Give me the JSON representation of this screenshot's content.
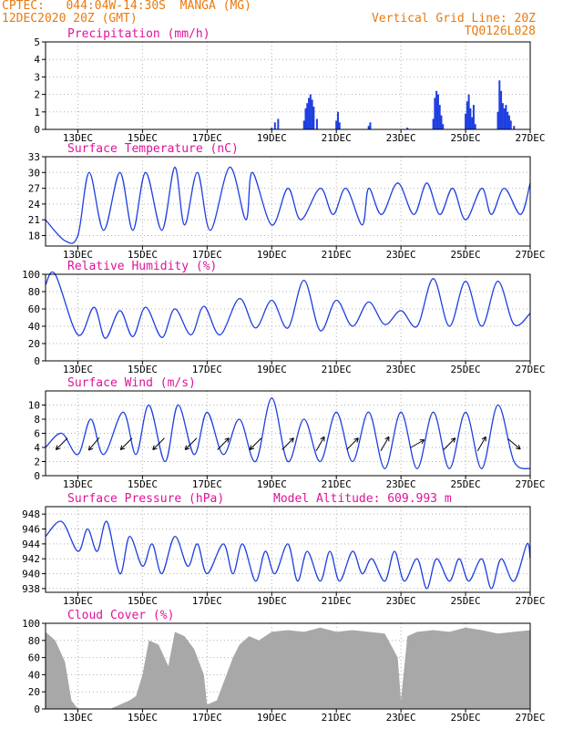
{
  "header": {
    "line1_left": "CPTEC:   044:04W-14:30S  MANGA (MG)",
    "line2_left": "12DEC2020 20Z (GMT)",
    "line1_right": "Vertical Grid Line: 20Z",
    "line2_right": "TQ0126L028"
  },
  "colors": {
    "title": "#e0139a",
    "header": "#e87a0f",
    "line": "#1f3fe0",
    "bars": "#1f3fe0",
    "cloud": "#a8a8a8",
    "grid": "#b0b0b0"
  },
  "x_ticks": [
    "13DEC",
    "15DEC",
    "17DEC",
    "19DEC",
    "21DEC",
    "23DEC",
    "25DEC",
    "27DEC"
  ],
  "model_altitude": "Model Altitude: 609.993 m",
  "chart_data": [
    {
      "type": "bar",
      "title": "Precipitation (mm/h)",
      "ylim": [
        0,
        5
      ],
      "yticks": [
        0,
        1,
        2,
        3,
        4,
        5
      ],
      "x": [
        19.0,
        19.1,
        19.2,
        20.0,
        20.05,
        20.1,
        20.15,
        20.2,
        20.25,
        20.3,
        20.4,
        21.0,
        21.05,
        21.1,
        22.0,
        22.05,
        23.2,
        24.0,
        24.05,
        24.1,
        24.15,
        24.2,
        24.25,
        24.3,
        25.0,
        25.05,
        25.1,
        25.15,
        25.2,
        25.25,
        25.3,
        26.0,
        26.05,
        26.1,
        26.15,
        26.2,
        26.25,
        26.3,
        26.35,
        26.4,
        26.5
      ],
      "values": [
        0.1,
        0.4,
        0.6,
        0.5,
        1.2,
        1.5,
        1.8,
        2.0,
        1.7,
        1.3,
        0.6,
        0.5,
        1.0,
        0.4,
        0.2,
        0.4,
        0.1,
        0.6,
        1.8,
        2.2,
        2.0,
        1.4,
        0.8,
        0.3,
        0.9,
        1.6,
        2.0,
        1.2,
        0.7,
        1.4,
        0.3,
        1.0,
        2.8,
        2.2,
        1.5,
        1.2,
        1.4,
        1.0,
        0.8,
        0.5,
        0.2
      ]
    },
    {
      "type": "line",
      "title": "Surface Temperature (nC)",
      "ylim": [
        16,
        33
      ],
      "yticks": [
        18,
        21,
        24,
        27,
        30,
        33
      ],
      "x": [
        12.0,
        12.6,
        13.0,
        13.35,
        13.8,
        14.3,
        14.7,
        15.1,
        15.6,
        16.0,
        16.3,
        16.7,
        17.1,
        17.7,
        18.2,
        18.4,
        19.0,
        19.5,
        19.9,
        20.5,
        20.9,
        21.3,
        21.8,
        22.0,
        22.4,
        22.9,
        23.4,
        23.8,
        24.2,
        24.6,
        25.0,
        25.5,
        25.8,
        26.2,
        26.7,
        27.0
      ],
      "values": [
        21,
        17,
        18,
        30,
        19,
        30,
        19,
        30,
        19,
        31,
        20,
        30,
        19,
        31,
        21,
        30,
        20,
        27,
        21,
        27,
        22,
        27,
        20,
        27,
        22,
        28,
        22,
        28,
        22,
        27,
        21,
        27,
        22,
        27,
        22,
        28
      ]
    },
    {
      "type": "line",
      "title": "Relative Humidity (%)",
      "ylim": [
        0,
        100
      ],
      "yticks": [
        0,
        20,
        40,
        60,
        80,
        100
      ],
      "x": [
        12.0,
        12.3,
        13.0,
        13.5,
        13.85,
        14.3,
        14.7,
        15.1,
        15.6,
        16.0,
        16.5,
        16.9,
        17.4,
        18.0,
        18.5,
        19.0,
        19.5,
        20.0,
        20.5,
        21.0,
        21.5,
        22.0,
        22.5,
        23.0,
        23.5,
        24.0,
        24.5,
        25.0,
        25.5,
        26.0,
        26.5,
        27.0
      ],
      "values": [
        88,
        100,
        30,
        62,
        26,
        58,
        28,
        62,
        27,
        60,
        30,
        63,
        30,
        72,
        38,
        70,
        38,
        93,
        35,
        70,
        40,
        68,
        42,
        58,
        40,
        95,
        40,
        92,
        40,
        92,
        42,
        55
      ]
    },
    {
      "type": "line",
      "title": "Surface Wind (m/s)",
      "ylim": [
        0,
        12
      ],
      "yticks": [
        0,
        2,
        4,
        6,
        8,
        10
      ],
      "x": [
        12.0,
        12.5,
        13.0,
        13.4,
        13.8,
        14.4,
        14.8,
        15.2,
        15.7,
        16.1,
        16.6,
        17.0,
        17.5,
        18.0,
        18.5,
        19.0,
        19.5,
        20.0,
        20.5,
        21.0,
        21.5,
        22.0,
        22.5,
        23.0,
        23.5,
        24.0,
        24.5,
        25.0,
        25.5,
        26.0,
        26.5,
        27.0
      ],
      "values": [
        4,
        6,
        3,
        8,
        3,
        9,
        3,
        10,
        2,
        10,
        3,
        9,
        3,
        8,
        2,
        11,
        2,
        8,
        2,
        9,
        2,
        9,
        1,
        9,
        1,
        9,
        1,
        9,
        1,
        10,
        2,
        1
      ],
      "arrows": [
        {
          "x": 12.5,
          "dir": 225
        },
        {
          "x": 13.5,
          "dir": 230
        },
        {
          "x": 14.5,
          "dir": 225
        },
        {
          "x": 15.5,
          "dir": 225
        },
        {
          "x": 16.5,
          "dir": 225
        },
        {
          "x": 17.5,
          "dir": 45
        },
        {
          "x": 18.5,
          "dir": 225
        },
        {
          "x": 19.5,
          "dir": 45
        },
        {
          "x": 20.5,
          "dir": 60
        },
        {
          "x": 21.5,
          "dir": 45
        },
        {
          "x": 22.5,
          "dir": 60
        },
        {
          "x": 23.5,
          "dir": 30
        },
        {
          "x": 24.5,
          "dir": 45
        },
        {
          "x": 25.5,
          "dir": 60
        },
        {
          "x": 26.5,
          "dir": 320
        }
      ]
    },
    {
      "type": "line",
      "title": "Surface Pressure (hPa)",
      "ylim": [
        937.5,
        949
      ],
      "yticks": [
        938,
        940,
        942,
        944,
        946,
        948
      ],
      "x": [
        12.0,
        12.5,
        13.0,
        13.3,
        13.6,
        13.9,
        14.3,
        14.6,
        15.0,
        15.3,
        15.6,
        16.0,
        16.4,
        16.7,
        17.0,
        17.5,
        17.8,
        18.1,
        18.5,
        18.8,
        19.1,
        19.5,
        19.8,
        20.1,
        20.5,
        20.8,
        21.1,
        21.5,
        21.8,
        22.1,
        22.5,
        22.8,
        23.1,
        23.5,
        23.8,
        24.1,
        24.5,
        24.8,
        25.1,
        25.5,
        25.8,
        26.1,
        26.5,
        26.9,
        27.0
      ],
      "values": [
        945,
        947,
        943,
        946,
        943,
        947,
        940,
        945,
        941,
        944,
        940,
        945,
        941,
        944,
        940,
        944,
        940,
        944,
        939,
        943,
        940,
        944,
        939,
        943,
        939,
        943,
        939,
        943,
        940,
        942,
        939,
        943,
        939,
        942,
        938,
        942,
        939,
        942,
        939,
        942,
        938,
        942,
        939,
        944,
        942
      ]
    },
    {
      "type": "area",
      "title": "Cloud Cover (%)",
      "ylim": [
        0,
        100
      ],
      "yticks": [
        0,
        20,
        40,
        60,
        80,
        100
      ],
      "x": [
        12.0,
        12.3,
        12.6,
        12.8,
        13.0,
        13.3,
        13.7,
        14.0,
        14.3,
        14.6,
        14.8,
        15.0,
        15.2,
        15.5,
        15.8,
        16.0,
        16.3,
        16.6,
        16.9,
        17.0,
        17.3,
        17.5,
        17.8,
        18.0,
        18.3,
        18.6,
        19.0,
        19.5,
        20.0,
        20.5,
        21.0,
        21.5,
        22.0,
        22.5,
        22.9,
        23.0,
        23.2,
        23.5,
        24.0,
        24.5,
        25.0,
        25.5,
        26.0,
        26.5,
        27.0
      ],
      "values": [
        90,
        80,
        55,
        10,
        0,
        0,
        0,
        0,
        5,
        10,
        15,
        40,
        80,
        75,
        50,
        90,
        85,
        70,
        40,
        5,
        10,
        30,
        60,
        75,
        85,
        80,
        90,
        92,
        90,
        95,
        90,
        92,
        90,
        88,
        60,
        10,
        85,
        90,
        92,
        90,
        95,
        92,
        88,
        90,
        92
      ]
    }
  ]
}
